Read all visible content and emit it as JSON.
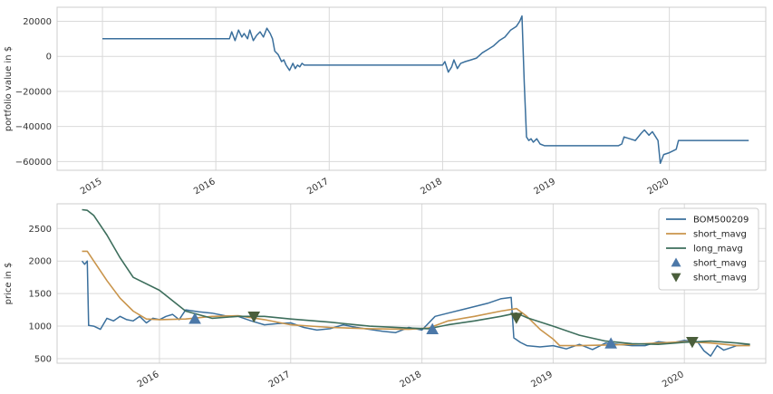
{
  "chart_data": [
    {
      "type": "line",
      "ylabel": "portfolio value in $",
      "xlabel": "",
      "ylim": [
        -65000,
        28000
      ],
      "xlim": [
        2014.6,
        2020.85
      ],
      "yticks": [
        20000,
        0,
        -20000,
        -40000,
        -60000
      ],
      "ytick_labels": [
        "20000",
        "0",
        "−20000",
        "−40000",
        "−60000"
      ],
      "xticks": [
        2015,
        2016,
        2017,
        2018,
        2019,
        2020
      ],
      "xtick_labels": [
        "2015",
        "2016",
        "2017",
        "2018",
        "2019",
        "2020"
      ],
      "grid": true,
      "series": [
        {
          "color": "#3a6f9c",
          "x": [
            2015.0,
            2016.0,
            2016.12,
            2016.14,
            2016.17,
            2016.2,
            2016.23,
            2016.25,
            2016.28,
            2016.3,
            2016.33,
            2016.36,
            2016.39,
            2016.42,
            2016.45,
            2016.48,
            2016.5,
            2016.52,
            2016.55,
            2016.58,
            2016.6,
            2016.62,
            2016.65,
            2016.68,
            2016.7,
            2016.72,
            2016.74,
            2016.76,
            2016.78,
            2017.0,
            2017.5,
            2018.0,
            2018.02,
            2018.05,
            2018.08,
            2018.1,
            2018.13,
            2018.16,
            2018.2,
            2018.25,
            2018.3,
            2018.35,
            2018.4,
            2018.45,
            2018.5,
            2018.55,
            2018.6,
            2018.65,
            2018.68,
            2018.7,
            2018.72,
            2018.74,
            2018.76,
            2018.78,
            2018.8,
            2018.83,
            2018.86,
            2018.9,
            2019.0,
            2019.5,
            2019.55,
            2019.58,
            2019.6,
            2019.65,
            2019.7,
            2019.75,
            2019.78,
            2019.82,
            2019.85,
            2019.88,
            2019.9,
            2019.92,
            2019.95,
            2020.0,
            2020.03,
            2020.06,
            2020.08,
            2020.5,
            2020.7
          ],
          "y": [
            10000,
            10000,
            10000,
            14000,
            9000,
            15000,
            11000,
            13000,
            10000,
            15000,
            9000,
            12000,
            14000,
            11000,
            16000,
            13000,
            10000,
            3000,
            1000,
            -3000,
            -2000,
            -5000,
            -8000,
            -4000,
            -7000,
            -5000,
            -6000,
            -4000,
            -5000,
            -5000,
            -5000,
            -5000,
            -3000,
            -9000,
            -6000,
            -2000,
            -7000,
            -4000,
            -3000,
            -2000,
            -1000,
            2000,
            4000,
            6000,
            9000,
            11000,
            15000,
            17000,
            20000,
            23000,
            -15000,
            -46000,
            -48000,
            -47000,
            -49000,
            -47000,
            -50000,
            -51000,
            -51000,
            -51000,
            -51000,
            -50000,
            -46000,
            -47000,
            -48000,
            -44000,
            -42000,
            -45000,
            -43000,
            -46000,
            -48000,
            -61000,
            -56000,
            -55000,
            -54000,
            -53000,
            -48000,
            -48000,
            -48000
          ]
        }
      ]
    },
    {
      "type": "line",
      "ylabel": "price in $",
      "xlabel": "",
      "ylim": [
        430,
        2880
      ],
      "xlim": [
        2015.22,
        2020.62
      ],
      "yticks": [
        500,
        1000,
        1500,
        2000,
        2500
      ],
      "ytick_labels": [
        "500",
        "1000",
        "1500",
        "2000",
        "2500"
      ],
      "xticks": [
        2016,
        2017,
        2018,
        2019,
        2020
      ],
      "xtick_labels": [
        "2016",
        "2017",
        "2018",
        "2019",
        "2020"
      ],
      "grid": true,
      "legend_position": "top-right",
      "series": [
        {
          "name": "BOM500209",
          "color": "#3a6f9c",
          "x": [
            2015.41,
            2015.43,
            2015.45,
            2015.46,
            2015.5,
            2015.55,
            2015.6,
            2015.65,
            2015.7,
            2015.75,
            2015.8,
            2015.85,
            2015.9,
            2015.95,
            2016.0,
            2016.05,
            2016.1,
            2016.15,
            2016.2,
            2016.3,
            2016.4,
            2016.5,
            2016.6,
            2016.7,
            2016.8,
            2016.9,
            2017.0,
            2017.1,
            2017.2,
            2017.3,
            2017.4,
            2017.5,
            2017.6,
            2017.7,
            2017.8,
            2017.9,
            2018.0,
            2018.1,
            2018.2,
            2018.3,
            2018.4,
            2018.5,
            2018.6,
            2018.68,
            2018.7,
            2018.75,
            2018.8,
            2018.9,
            2019.0,
            2019.1,
            2019.2,
            2019.3,
            2019.4,
            2019.5,
            2019.6,
            2019.7,
            2019.8,
            2019.9,
            2020.0,
            2020.1,
            2020.15,
            2020.2,
            2020.25,
            2020.3,
            2020.4,
            2020.5
          ],
          "y": [
            2000,
            1950,
            2000,
            1010,
            1000,
            950,
            1120,
            1080,
            1150,
            1100,
            1080,
            1150,
            1050,
            1120,
            1100,
            1150,
            1180,
            1100,
            1250,
            1220,
            1200,
            1160,
            1150,
            1080,
            1020,
            1040,
            1050,
            980,
            940,
            960,
            1020,
            980,
            950,
            920,
            900,
            980,
            940,
            1150,
            1200,
            1250,
            1300,
            1350,
            1420,
            1440,
            820,
            750,
            700,
            680,
            700,
            650,
            720,
            640,
            740,
            720,
            700,
            700,
            760,
            740,
            780,
            760,
            620,
            540,
            700,
            630,
            700,
            710
          ]
        },
        {
          "name": "short_mavg",
          "color": "#c9954c",
          "x": [
            2015.41,
            2015.45,
            2015.5,
            2015.6,
            2015.7,
            2015.8,
            2015.9,
            2016.0,
            2016.2,
            2016.4,
            2016.6,
            2016.8,
            2017.0,
            2017.3,
            2017.6,
            2017.9,
            2018.05,
            2018.2,
            2018.4,
            2018.6,
            2018.72,
            2018.8,
            2018.9,
            2019.0,
            2019.05,
            2019.2,
            2019.4,
            2019.6,
            2019.8,
            2020.0,
            2020.2,
            2020.4,
            2020.5
          ],
          "y": [
            2150,
            2150,
            2000,
            1700,
            1430,
            1230,
            1110,
            1100,
            1110,
            1150,
            1160,
            1100,
            1020,
            980,
            960,
            950,
            970,
            1080,
            1150,
            1230,
            1270,
            1150,
            950,
            800,
            700,
            700,
            710,
            720,
            740,
            760,
            740,
            700,
            700
          ]
        },
        {
          "name": "long_mavg",
          "color": "#3d6e5c",
          "x": [
            2015.41,
            2015.45,
            2015.5,
            2015.6,
            2015.7,
            2015.8,
            2016.0,
            2016.2,
            2016.4,
            2016.6,
            2016.8,
            2017.0,
            2017.3,
            2017.6,
            2017.9,
            2018.05,
            2018.2,
            2018.4,
            2018.6,
            2018.72,
            2018.8,
            2019.0,
            2019.2,
            2019.4,
            2019.6,
            2019.8,
            2020.0,
            2020.2,
            2020.4,
            2020.5
          ],
          "y": [
            2790,
            2780,
            2700,
            2400,
            2050,
            1750,
            1550,
            1230,
            1120,
            1150,
            1150,
            1110,
            1060,
            1000,
            970,
            960,
            1020,
            1080,
            1150,
            1200,
            1130,
            1000,
            860,
            770,
            730,
            720,
            750,
            770,
            740,
            720
          ]
        }
      ],
      "markers": [
        {
          "name": "short_mavg",
          "type": "triangle-up",
          "color": "#4c78a8",
          "x": [
            2016.27,
            2018.08,
            2019.44
          ],
          "y": [
            1110,
            950,
            730
          ]
        },
        {
          "name": "short_mavg",
          "type": "triangle-down",
          "color": "#4a5e3b",
          "x": [
            2016.72,
            2018.72,
            2020.06
          ],
          "y": [
            1150,
            1130,
            760
          ]
        }
      ]
    }
  ]
}
